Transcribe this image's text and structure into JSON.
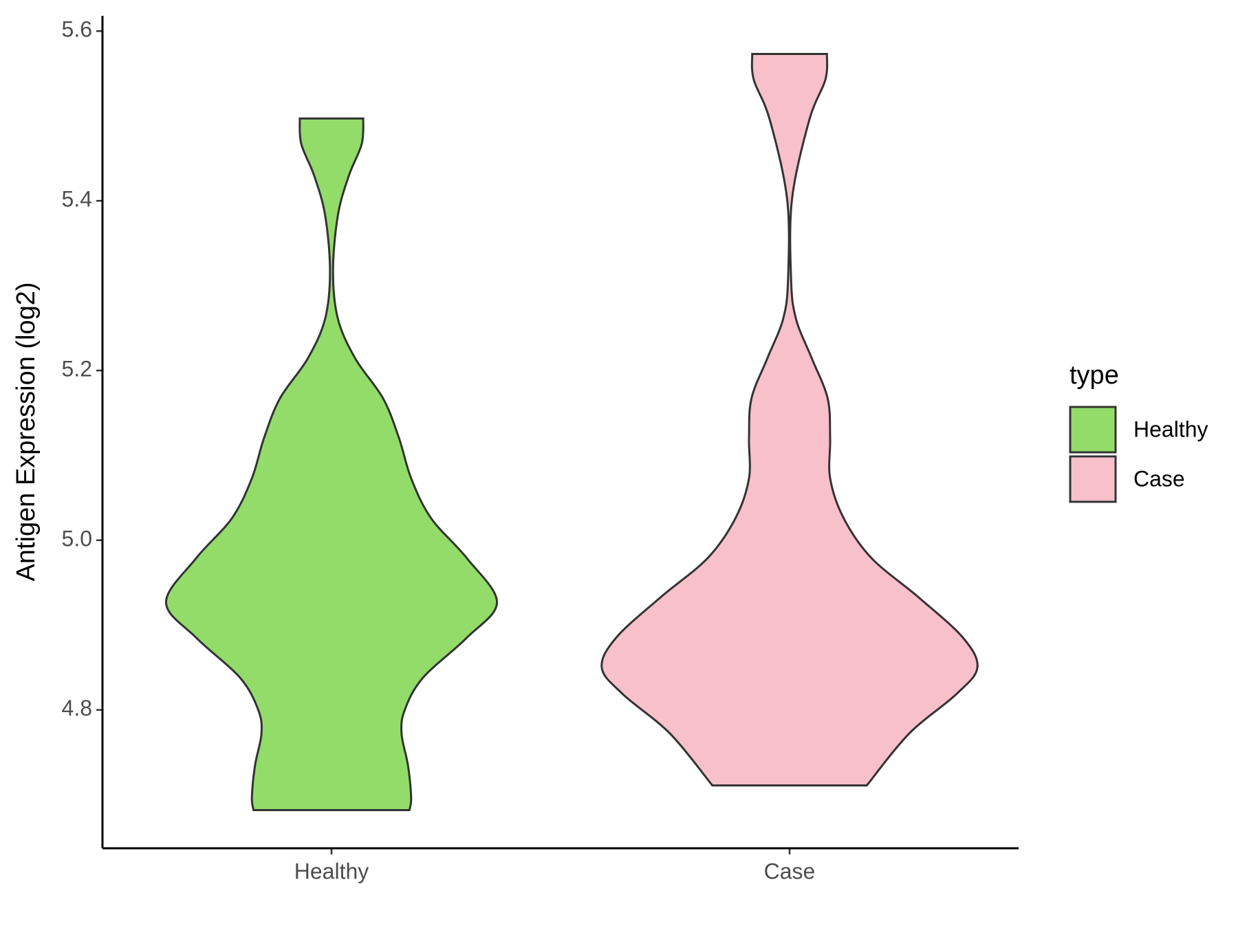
{
  "chart_data": {
    "type": "violin",
    "y_label": "Antigen Expression (log2)",
    "categories": [
      "Healthy",
      "Case"
    ],
    "legend_title": "type",
    "legend": "right",
    "ylim": [
      4.637,
      5.618
    ],
    "yticks": [
      4.8,
      {
        "value": 5,
        "label": "5.0"
      },
      5.2,
      5.4,
      5.6
    ],
    "series": [
      {
        "name": "Healthy",
        "color": "#93dc6a",
        "y": [
          5.497,
          5.467,
          5.43,
          5.383,
          5.317,
          5.261,
          5.214,
          5.167,
          5.12,
          5.073,
          5.026,
          4.979,
          4.927,
          4.885,
          4.838,
          4.8,
          4.772,
          4.735,
          4.697,
          4.682
        ],
        "density": [
          0.169,
          0.161,
          0.093,
          0.034,
          0.008,
          0.034,
          0.127,
          0.275,
          0.36,
          0.424,
          0.53,
          0.72,
          0.881,
          0.72,
          0.487,
          0.39,
          0.373,
          0.407,
          0.424,
          0.415
        ]
      },
      {
        "name": "Case",
        "color": "#f7c0cb",
        "y": [
          5.573,
          5.543,
          5.496,
          5.402,
          5.308,
          5.261,
          5.214,
          5.167,
          5.12,
          5.073,
          5.026,
          4.979,
          4.932,
          4.885,
          4.85,
          4.819,
          4.772,
          4.711
        ],
        "density": [
          0.199,
          0.191,
          0.106,
          0.013,
          0.008,
          0.034,
          0.119,
          0.203,
          0.216,
          0.216,
          0.288,
          0.436,
          0.691,
          0.924,
          1,
          0.89,
          0.636,
          0.411
        ]
      }
    ]
  }
}
